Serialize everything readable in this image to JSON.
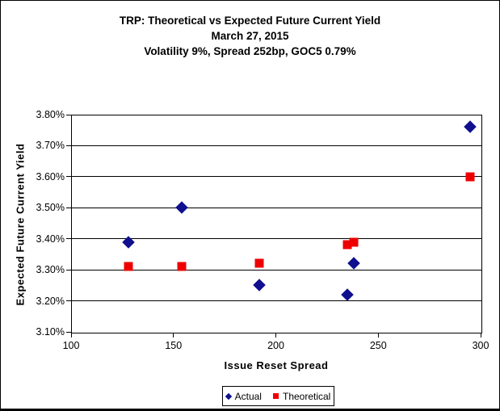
{
  "chart_data": {
    "type": "scatter",
    "title": "TRP: Theoretical vs Expected Future Current Yield",
    "subtitle1": "March 27, 2015",
    "subtitle2": "Volatility 9%, Spread 252bp, GOC5 0.79%",
    "xlabel": "Issue Reset Spread",
    "ylabel": "Expected Future Current Yield",
    "xlim": [
      100,
      300
    ],
    "xticks": [
      100,
      150,
      200,
      250,
      300
    ],
    "ylim": [
      3.1,
      3.8
    ],
    "ytick_step": 0.1,
    "ytick_suffix": "%",
    "grid": "horizontal",
    "legend_position": "bottom-center",
    "series": [
      {
        "name": "Actual",
        "marker": "diamond",
        "color": "#10108E",
        "points": [
          [
            128,
            3.39
          ],
          [
            154,
            3.5
          ],
          [
            192,
            3.25
          ],
          [
            235,
            3.22
          ],
          [
            238,
            3.32
          ],
          [
            295,
            3.76
          ]
        ]
      },
      {
        "name": "Theoretical",
        "marker": "square",
        "color": "#EE0000",
        "points": [
          [
            128,
            3.31
          ],
          [
            154,
            3.31
          ],
          [
            192,
            3.32
          ],
          [
            235,
            3.38
          ],
          [
            238,
            3.39
          ],
          [
            295,
            3.6
          ]
        ]
      }
    ]
  }
}
